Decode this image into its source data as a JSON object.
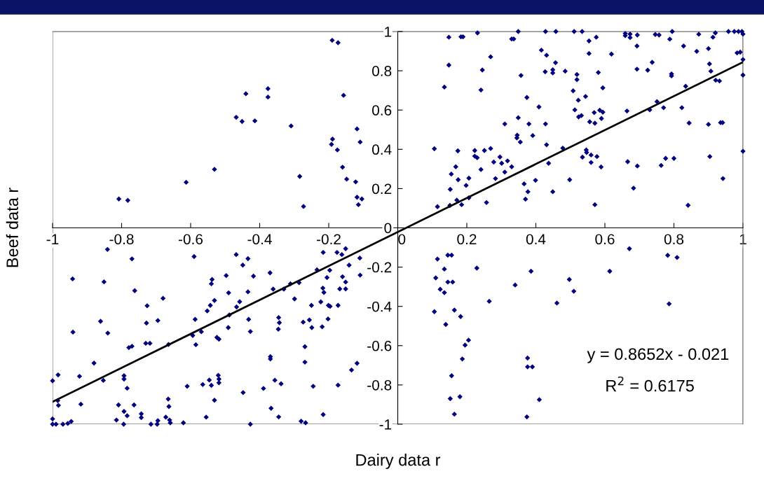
{
  "chart_data": {
    "type": "scatter",
    "xlabel": "Dairy data r",
    "ylabel": "Beef data r",
    "xlim": [
      -1,
      1
    ],
    "ylim": [
      -1,
      1
    ],
    "xticks": [
      -1,
      -0.8,
      -0.6,
      -0.4,
      -0.2,
      0,
      0.2,
      0.4,
      0.6,
      0.8,
      1
    ],
    "yticks": [
      -1,
      -0.8,
      -0.6,
      -0.4,
      -0.2,
      0,
      0.2,
      0.4,
      0.6,
      0.8,
      1
    ],
    "grid": false,
    "annotations": [
      "y = 0.8652x - 0.021",
      "R$^{2}$ = 0.6175"
    ],
    "series": [
      {
        "marker": "diamond",
        "color": "#000080",
        "x": [
          -0.808,
          -0.782,
          -0.613,
          -0.531,
          -0.468,
          -0.451,
          -0.44,
          -0.414,
          -0.376,
          -0.376,
          -0.309,
          -0.284,
          -0.273,
          -0.19,
          -0.173,
          -0.192,
          -0.189,
          -0.175,
          -0.157,
          -0.16,
          -0.148,
          -0.122,
          -0.118,
          -0.109,
          -0.118,
          -0.104,
          -0.114,
          0.148,
          0.183,
          0.189,
          0.231,
          0.33,
          0.336,
          0.349,
          0.428,
          0.458,
          0.511,
          0.534,
          0.554,
          0.575,
          0.659,
          0.659,
          0.673,
          0.673,
          0.694,
          0.693,
          0.746,
          0.757,
          0.788,
          0.795,
          0.828,
          0.872,
          0.866,
          0.9,
          0.913,
          0.92,
          0.958,
          0.975,
          0.987,
          0.997,
          1.0,
          0.983,
          0.992,
          1.0,
          1.0,
          1.0,
          0.148,
          0.135,
          0.245,
          0.241,
          0.269,
          0.357,
          0.374,
          0.416,
          0.431,
          0.457,
          0.427,
          0.449,
          0.449,
          0.485,
          0.519,
          0.519,
          0.508,
          0.523,
          0.544,
          0.554,
          0.581,
          0.594,
          0.619,
          0.409,
          0.513,
          0.524,
          0.532,
          0.569,
          0.585,
          0.594,
          0.59,
          0.556,
          0.571,
          0.349,
          0.31,
          0.38,
          0.428,
          0.346,
          0.345,
          0.355,
          0.391,
          0.431,
          0.693,
          0.724,
          0.737,
          0.793,
          0.793,
          0.903,
          0.907,
          0.921,
          0.932,
          0.834,
          0.664,
          0.73,
          0.751,
          0.77,
          0.823,
          0.844,
          0.9,
          0.935,
          0.941,
          0.106,
          0.174,
          0.223,
          0.251,
          0.269,
          0.223,
          0.23,
          0.296,
          0.278,
          0.301,
          0.318,
          0.33,
          0.168,
          0.241,
          0.155,
          0.175,
          0.206,
          0.198,
          0.283,
          0.31,
          0.152,
          0.171,
          0.206,
          0.115,
          0.151,
          0.185,
          0.257,
          0.366,
          0.399,
          0.377,
          0.37,
          0.449,
          0.478,
          0.437,
          0.498,
          0.535,
          0.546,
          0.547,
          0.56,
          0.56,
          0.577,
          0.589,
          0.571,
          0.666,
          0.694,
          0.683,
          0.776,
          0.8,
          0.763,
          0.841,
          0.904,
          0.942,
          -0.841,
          -0.77,
          -0.59,
          -0.468,
          -0.434,
          -0.449,
          -0.216,
          -0.176,
          -0.151,
          -0.162,
          -0.11,
          -0.141,
          -0.942,
          -0.851,
          -0.762,
          -0.68,
          -0.726,
          -0.861,
          -0.728,
          -0.695,
          -0.941,
          -0.84,
          -0.779,
          -0.77,
          -0.73,
          -0.718,
          -0.664,
          -0.88,
          -0.922,
          -0.984,
          -1.0,
          -0.985,
          -0.983,
          -0.918,
          -0.853,
          -0.793,
          -0.793,
          -0.784,
          -0.809,
          -0.764,
          -0.815,
          -0.793,
          -0.784,
          -0.794,
          -0.743,
          -0.743,
          -0.715,
          -0.695,
          -0.697,
          -0.665,
          -0.663,
          -0.672,
          -0.661,
          -0.659,
          -0.621,
          -1.0,
          -1.0,
          -0.99,
          -0.97,
          -0.956,
          -0.946,
          -0.587,
          -0.569,
          -0.594,
          -0.585,
          -0.552,
          -0.543,
          -0.54,
          -0.538,
          -0.531,
          -0.497,
          -0.49,
          -0.458,
          -0.467,
          -0.488,
          -0.491,
          -0.524,
          -0.518,
          -0.434,
          -0.418,
          -0.432,
          -0.427,
          -0.37,
          -0.361,
          -0.33,
          -0.311,
          -0.299,
          -0.286,
          -0.345,
          -0.343,
          -0.346,
          -0.274,
          -0.256,
          -0.249,
          -0.25,
          -0.234,
          -0.217,
          -0.214,
          -0.223,
          -0.205,
          -0.197,
          -0.201,
          -0.196,
          -0.202,
          -0.219,
          -0.173,
          -0.168,
          -0.16,
          -0.151,
          -0.151,
          -0.109,
          -0.269,
          -0.269,
          -0.369,
          -0.369,
          -0.356,
          -0.338,
          -0.389,
          -0.367,
          -0.345,
          -0.448,
          -0.427,
          -0.565,
          -0.546,
          -0.54,
          -0.52,
          -0.518,
          -0.518,
          -0.531,
          -0.61,
          -0.555,
          -0.28,
          -0.267,
          -0.245,
          -0.216,
          -0.173,
          -0.134,
          -0.118,
          0.671,
          0.782,
          0.809,
          0.115,
          0.145,
          0.156,
          0.135,
          0.229,
          0.386,
          0.614,
          0.11,
          0.145,
          0.159,
          0.123,
          0.135,
          0.34,
          0.497,
          0.51,
          0.265,
          0.461,
          0.786,
          0.106,
          0.164,
          0.182,
          0.139,
          0.205,
          0.195,
          0.187,
          0.376,
          0.376,
          0.39,
          0.156,
          0.152,
          0.18,
          0.41,
          0.164,
          0.374
        ],
        "values": [
          0.147,
          0.14,
          0.232,
          0.298,
          0.563,
          0.542,
          0.683,
          0.545,
          0.709,
          0.666,
          0.519,
          0.262,
          0.109,
          0.955,
          0.943,
          0.425,
          0.452,
          0.397,
          0.675,
          0.309,
          0.248,
          0.234,
          0.504,
          0.437,
          0.156,
          0.147,
          0.118,
          0.971,
          0.973,
          0.973,
          0.993,
          0.962,
          0.962,
          1.0,
          1.0,
          1.0,
          1.0,
          1.0,
          0.952,
          0.971,
          0.99,
          0.979,
          0.969,
          0.987,
          0.982,
          0.926,
          0.985,
          0.982,
          0.961,
          1.0,
          0.926,
          0.986,
          0.899,
          0.913,
          0.971,
          0.993,
          1.0,
          1.0,
          1.0,
          1.0,
          0.987,
          0.891,
          0.895,
          0.857,
          0.778,
          0.39,
          0.829,
          0.717,
          0.804,
          0.702,
          0.871,
          0.776,
          0.664,
          0.905,
          0.879,
          0.841,
          0.795,
          0.805,
          0.789,
          0.798,
          0.781,
          0.755,
          0.698,
          0.65,
          0.669,
          0.888,
          0.791,
          0.713,
          0.885,
          0.616,
          0.601,
          0.565,
          0.572,
          0.587,
          0.599,
          0.589,
          0.557,
          0.54,
          0.533,
          0.561,
          0.529,
          0.529,
          0.529,
          0.472,
          0.458,
          0.437,
          0.47,
          0.423,
          0.808,
          0.803,
          0.843,
          0.784,
          0.774,
          0.835,
          0.798,
          0.752,
          0.748,
          0.721,
          0.595,
          0.601,
          0.643,
          0.612,
          0.612,
          0.534,
          0.527,
          0.536,
          0.536,
          0.403,
          0.392,
          0.394,
          0.394,
          0.404,
          0.365,
          0.357,
          0.361,
          0.335,
          0.329,
          0.341,
          0.311,
          0.311,
          0.297,
          0.274,
          0.245,
          0.253,
          0.216,
          0.251,
          0.284,
          0.196,
          0.141,
          0.153,
          0.108,
          0.114,
          0.118,
          0.129,
          0.224,
          0.242,
          0.184,
          0.146,
          0.184,
          0.406,
          0.329,
          0.245,
          0.36,
          0.397,
          0.384,
          0.371,
          0.333,
          0.363,
          0.31,
          0.118,
          0.337,
          0.315,
          0.202,
          0.354,
          0.354,
          0.318,
          0.115,
          0.363,
          0.251,
          -0.11,
          -0.158,
          -0.146,
          -0.136,
          -0.157,
          -0.19,
          -0.125,
          -0.125,
          -0.106,
          -0.136,
          -0.154,
          -0.19,
          -0.26,
          -0.275,
          -0.32,
          -0.359,
          -0.397,
          -0.476,
          -0.485,
          -0.472,
          -0.531,
          -0.536,
          -0.61,
          -0.603,
          -0.588,
          -0.588,
          -0.594,
          -0.689,
          -0.756,
          -0.749,
          -0.779,
          -0.88,
          -0.904,
          -0.898,
          -0.777,
          -0.753,
          -0.77,
          -0.817,
          -0.902,
          -0.902,
          -0.979,
          -0.935,
          -0.957,
          -1.0,
          -0.947,
          -0.966,
          -1.0,
          -0.982,
          -1.0,
          -0.872,
          -0.91,
          -0.964,
          -0.979,
          -0.993,
          -0.993,
          -0.973,
          -1.0,
          -1.0,
          -1.0,
          -0.996,
          -0.986,
          -0.466,
          -0.529,
          -0.548,
          -0.595,
          -0.423,
          -0.395,
          -0.285,
          -0.263,
          -0.37,
          -0.243,
          -0.331,
          -0.376,
          -0.403,
          -0.444,
          -0.508,
          -0.558,
          -0.567,
          -0.326,
          -0.246,
          -0.466,
          -0.528,
          -0.229,
          -0.312,
          -0.312,
          -0.285,
          -0.362,
          -0.279,
          -0.457,
          -0.483,
          -0.516,
          -0.48,
          -0.469,
          -0.508,
          -0.395,
          -0.214,
          -0.307,
          -0.329,
          -0.377,
          -0.253,
          -0.216,
          -0.395,
          -0.4,
          -0.464,
          -0.504,
          -0.395,
          -0.311,
          -0.249,
          -0.276,
          -0.311,
          -0.241,
          -0.605,
          -0.684,
          -0.656,
          -0.668,
          -0.776,
          -0.794,
          -0.818,
          -0.919,
          -0.963,
          -0.839,
          -1.0,
          -0.798,
          -0.775,
          -0.802,
          -0.751,
          -0.77,
          -0.789,
          -0.878,
          -0.807,
          -0.964,
          -0.985,
          -0.993,
          -0.807,
          -0.951,
          -0.801,
          -0.724,
          -0.69,
          -0.106,
          -0.14,
          -0.151,
          -0.159,
          -0.139,
          -0.139,
          -0.21,
          -0.205,
          -0.221,
          -0.221,
          -0.255,
          -0.276,
          -0.276,
          -0.313,
          -0.33,
          -0.291,
          -0.263,
          -0.323,
          -0.374,
          -0.383,
          -0.387,
          -0.427,
          -0.419,
          -0.452,
          -0.492,
          -0.572,
          -0.597,
          -0.668,
          -0.663,
          -0.708,
          -0.708,
          -0.753,
          -0.87,
          -0.86,
          -0.875,
          -0.949,
          -0.963
        ]
      },
      {
        "type": "line",
        "marker": "none",
        "color": "#000000",
        "x": [
          -1,
          1
        ],
        "values": [
          -0.886,
          0.844
        ]
      }
    ]
  }
}
